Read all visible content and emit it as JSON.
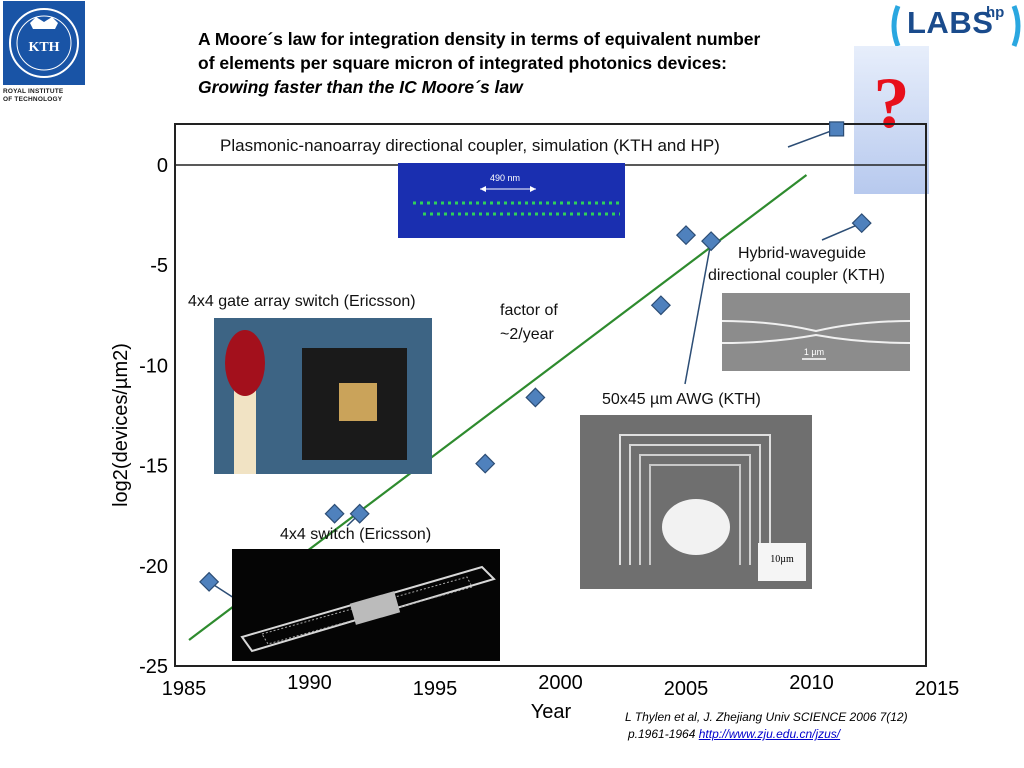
{
  "header": {
    "title_line1": "A Moore´s law for integration density in terms of equivalent  number",
    "title_line2": "of elements per square micron of integrated photonics devices:",
    "title_line3": "Growing faster than the IC Moore´s law"
  },
  "logos": {
    "kth_wordmark": "KTH",
    "kth_caption_line1": "ROYAL INSTITUTE",
    "kth_caption_line2": "OF TECHNOLOGY",
    "labs_text": "LABS",
    "labs_hp": "hp"
  },
  "question_mark": "?",
  "annotations": {
    "plasmonic": "Plasmonic-nanoarray directional coupler, simulation (KTH and HP)",
    "plasmonic_scale": "490 nm",
    "hybrid_line1": "Hybrid-waveguide",
    "hybrid_line2": "directional coupler (KTH)",
    "hybrid_scale": "1 µm",
    "gate_array": "4x4 gate array switch  (Ericsson)",
    "factor_line1": "factor of",
    "factor_line2": "~2/year",
    "awg": "50x45 µm AWG (KTH)",
    "awg_scale": "10µm",
    "switch": "4x4 switch (Ericsson)"
  },
  "citation": {
    "line1": "L Thylen et al, J. Zhejiang Univ SCIENCE 2006 7(12)",
    "line2_prefix": "p.1961-1964  ",
    "link": "http://www.zju.edu.cn/jzus/"
  },
  "colors": {
    "marker": "#4f81bd",
    "marker_edge": "#2c4d75",
    "trend": "#2e8b2e",
    "kth_blue": "#1954a6",
    "question": "#e8101b"
  },
  "chart_data": {
    "type": "scatter",
    "xlabel": "Year",
    "ylabel": "log2(devices/µm2)",
    "xlim": [
      1985,
      2015
    ],
    "ylim": [
      -25,
      2
    ],
    "x_ticks": [
      1985,
      1990,
      1995,
      2000,
      2005,
      2010,
      2015
    ],
    "y_ticks": [
      0,
      -5,
      -10,
      -15,
      -20,
      -25
    ],
    "grid": false,
    "points": [
      {
        "x": 1986,
        "y": -20.8,
        "marker": "diamond"
      },
      {
        "x": 1991,
        "y": -17.4,
        "marker": "diamond"
      },
      {
        "x": 1992,
        "y": -17.4,
        "marker": "diamond"
      },
      {
        "x": 1997,
        "y": -14.9,
        "marker": "diamond"
      },
      {
        "x": 1999,
        "y": -11.6,
        "marker": "diamond"
      },
      {
        "x": 2004,
        "y": -7.0,
        "marker": "diamond"
      },
      {
        "x": 2005,
        "y": -3.5,
        "marker": "diamond"
      },
      {
        "x": 2006,
        "y": -3.8,
        "marker": "diamond"
      },
      {
        "x": 2012,
        "y": -2.9,
        "marker": "diamond"
      },
      {
        "x": 2011,
        "y": 1.8,
        "marker": "square"
      }
    ],
    "trendline": {
      "x": [
        1985.2,
        2009.8
      ],
      "y": [
        -23.7,
        -0.5
      ]
    }
  }
}
